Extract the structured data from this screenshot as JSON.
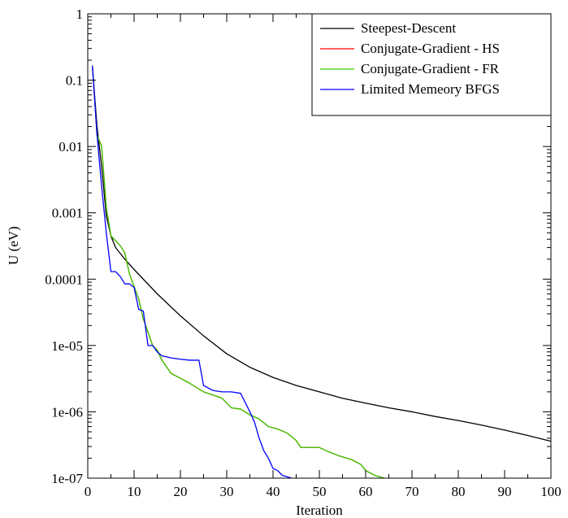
{
  "chart_data": {
    "type": "line",
    "title": "",
    "xlabel": "Iteration",
    "ylabel": "U (eV)",
    "xlim": [
      0,
      100
    ],
    "ylim": [
      1e-07,
      1
    ],
    "yscale": "log",
    "xticks": [
      0,
      10,
      20,
      30,
      40,
      50,
      60,
      70,
      80,
      90,
      100
    ],
    "xtick_labels": [
      "0",
      "10",
      "20",
      "30",
      "40",
      "50",
      "60",
      "70",
      "80",
      "90",
      "100"
    ],
    "yticks": [
      1e-07,
      1e-06,
      1e-05,
      0.0001,
      0.001,
      0.01,
      0.1,
      1
    ],
    "ytick_labels": [
      "1e-07",
      "1e-06",
      "1e-05",
      "0.0001",
      "0.001",
      "0.01",
      "0.1",
      "1"
    ],
    "grid": false,
    "legend_position": "top-right",
    "series": [
      {
        "name": "Steepest-Descent",
        "color": "#000000",
        "points": [
          [
            1,
            0.165
          ],
          [
            2,
            0.02
          ],
          [
            3,
            0.005
          ],
          [
            4,
            0.0009
          ],
          [
            5,
            0.00045
          ],
          [
            6,
            0.0003
          ],
          [
            8,
            0.0002
          ],
          [
            10,
            0.00014
          ],
          [
            15,
            6e-05
          ],
          [
            20,
            2.8e-05
          ],
          [
            25,
            1.4e-05
          ],
          [
            30,
            7.5e-06
          ],
          [
            35,
            4.7e-06
          ],
          [
            40,
            3.3e-06
          ],
          [
            45,
            2.5e-06
          ],
          [
            50,
            2e-06
          ],
          [
            55,
            1.6e-06
          ],
          [
            60,
            1.35e-06
          ],
          [
            65,
            1.15e-06
          ],
          [
            70,
            1e-06
          ],
          [
            75,
            8.5e-07
          ],
          [
            80,
            7.4e-07
          ],
          [
            85,
            6.3e-07
          ],
          [
            90,
            5.3e-07
          ],
          [
            95,
            4.4e-07
          ],
          [
            100,
            3.6e-07
          ]
        ]
      },
      {
        "name": "Conjugate-Gradient - HS",
        "color": "#ff0000",
        "points": [
          [
            1,
            0.165
          ],
          [
            2,
            0.015
          ],
          [
            3,
            0.01
          ],
          [
            4,
            0.0012
          ],
          [
            5,
            0.00045
          ],
          [
            7,
            0.00032
          ],
          [
            8,
            0.00025
          ],
          [
            9,
            0.00012
          ],
          [
            11,
            5e-05
          ],
          [
            12,
            2.5e-05
          ],
          [
            13,
            1.6e-05
          ],
          [
            14,
            1e-05
          ],
          [
            15,
            8.5e-06
          ],
          [
            16,
            6e-06
          ],
          [
            18,
            3.8e-06
          ],
          [
            20,
            3.2e-06
          ],
          [
            22,
            2.7e-06
          ],
          [
            24,
            2.2e-06
          ],
          [
            25,
            2e-06
          ],
          [
            27,
            1.8e-06
          ],
          [
            29,
            1.6e-06
          ],
          [
            31,
            1.15e-06
          ],
          [
            33,
            1.1e-06
          ],
          [
            35,
            9e-07
          ],
          [
            37,
            7.8e-07
          ],
          [
            39,
            6e-07
          ],
          [
            41,
            5.5e-07
          ],
          [
            43,
            4.8e-07
          ],
          [
            45,
            3.7e-07
          ],
          [
            46,
            2.9e-07
          ],
          [
            50,
            2.9e-07
          ],
          [
            52,
            2.5e-07
          ],
          [
            54,
            2.2e-07
          ],
          [
            57,
            1.9e-07
          ],
          [
            59,
            1.6e-07
          ],
          [
            60,
            1.3e-07
          ],
          [
            62,
            1.1e-07
          ],
          [
            64,
            1e-07
          ]
        ]
      },
      {
        "name": "Conjugate-Gradient - FR",
        "color": "#33cc00",
        "points": [
          [
            1,
            0.165
          ],
          [
            2,
            0.015
          ],
          [
            3,
            0.01
          ],
          [
            4,
            0.0012
          ],
          [
            5,
            0.00045
          ],
          [
            7,
            0.00032
          ],
          [
            8,
            0.00025
          ],
          [
            9,
            0.00012
          ],
          [
            11,
            5e-05
          ],
          [
            12,
            2.5e-05
          ],
          [
            13,
            1.6e-05
          ],
          [
            14,
            1e-05
          ],
          [
            15,
            8.5e-06
          ],
          [
            16,
            6e-06
          ],
          [
            18,
            3.8e-06
          ],
          [
            20,
            3.2e-06
          ],
          [
            22,
            2.7e-06
          ],
          [
            24,
            2.2e-06
          ],
          [
            25,
            2e-06
          ],
          [
            27,
            1.8e-06
          ],
          [
            29,
            1.6e-06
          ],
          [
            31,
            1.15e-06
          ],
          [
            33,
            1.1e-06
          ],
          [
            35,
            9e-07
          ],
          [
            37,
            7.8e-07
          ],
          [
            39,
            6e-07
          ],
          [
            41,
            5.5e-07
          ],
          [
            43,
            4.8e-07
          ],
          [
            45,
            3.7e-07
          ],
          [
            46,
            2.9e-07
          ],
          [
            50,
            2.9e-07
          ],
          [
            52,
            2.5e-07
          ],
          [
            54,
            2.2e-07
          ],
          [
            57,
            1.9e-07
          ],
          [
            59,
            1.6e-07
          ],
          [
            60,
            1.3e-07
          ],
          [
            62,
            1.1e-07
          ],
          [
            64,
            1e-07
          ]
        ]
      },
      {
        "name": "Limited Memeory BFGS",
        "color": "#0000ff",
        "points": [
          [
            1,
            0.165
          ],
          [
            2,
            0.015
          ],
          [
            3,
            0.0025
          ],
          [
            4,
            0.0005
          ],
          [
            5,
            0.00013
          ],
          [
            6,
            0.00013
          ],
          [
            7,
            0.00011
          ],
          [
            8,
            8.5e-05
          ],
          [
            9,
            8.5e-05
          ],
          [
            10,
            7.5e-05
          ],
          [
            11,
            3.5e-05
          ],
          [
            12,
            3.3e-05
          ],
          [
            13,
            1e-05
          ],
          [
            14,
            1e-05
          ],
          [
            15,
            8e-06
          ],
          [
            16,
            7e-06
          ],
          [
            18,
            6.5e-06
          ],
          [
            20,
            6.2e-06
          ],
          [
            22,
            6e-06
          ],
          [
            24,
            6e-06
          ],
          [
            25,
            2.5e-06
          ],
          [
            27,
            2.1e-06
          ],
          [
            29,
            2e-06
          ],
          [
            31,
            2e-06
          ],
          [
            33,
            1.9e-06
          ],
          [
            35,
            1e-06
          ],
          [
            36,
            7e-07
          ],
          [
            37,
            4e-07
          ],
          [
            38,
            2.6e-07
          ],
          [
            39,
            2e-07
          ],
          [
            40,
            1.4e-07
          ],
          [
            41,
            1.3e-07
          ],
          [
            42,
            1.1e-07
          ],
          [
            43,
            1.05e-07
          ],
          [
            44,
            1e-07
          ]
        ]
      }
    ]
  }
}
